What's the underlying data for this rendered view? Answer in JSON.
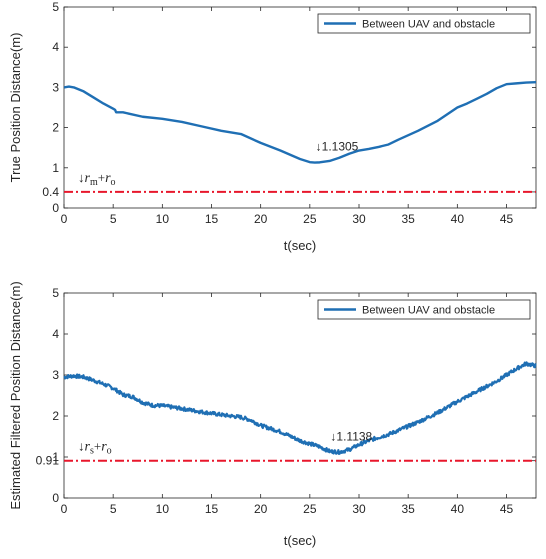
{
  "chart_data": [
    {
      "type": "line",
      "ylabel": "True Position Distance(m)",
      "xlabel": "t(sec)",
      "xlim": [
        0,
        48
      ],
      "ylim": [
        0,
        5
      ],
      "xticks": [
        0,
        5,
        10,
        15,
        20,
        25,
        30,
        35,
        40,
        45
      ],
      "yticks": [
        0,
        0.4,
        1,
        2,
        3,
        4,
        5
      ],
      "grid": false,
      "legend_position": "top-right",
      "series": [
        {
          "name": "Between UAV and obstacle",
          "color": "#1f6fb4",
          "x": [
            0,
            0.5,
            1,
            2,
            3,
            4,
            5,
            5.2,
            5.3,
            6,
            8,
            10,
            12,
            14,
            16,
            18,
            20,
            22,
            24,
            25,
            25.5,
            26,
            27,
            28,
            29,
            30,
            31,
            32,
            33,
            34,
            36,
            38,
            40,
            41,
            42,
            43,
            44,
            45,
            46,
            47,
            48
          ],
          "y": [
            3.0,
            3.02,
            3.0,
            2.9,
            2.75,
            2.6,
            2.47,
            2.44,
            2.38,
            2.38,
            2.27,
            2.22,
            2.14,
            2.03,
            1.92,
            1.84,
            1.62,
            1.43,
            1.22,
            1.14,
            1.131,
            1.135,
            1.17,
            1.25,
            1.35,
            1.43,
            1.47,
            1.52,
            1.58,
            1.7,
            1.92,
            2.17,
            2.5,
            2.6,
            2.72,
            2.84,
            2.98,
            3.08,
            3.1,
            3.12,
            3.13
          ]
        },
        {
          "name": "",
          "color": "#e8172c",
          "style": "dash-dot",
          "x": [
            0,
            48
          ],
          "y": [
            0.4,
            0.4
          ]
        }
      ],
      "annotations": [
        {
          "text": "↓1.1305",
          "x": 26.0,
          "y": 1.1305
        }
      ],
      "threshold_label": {
        "arrow": "↓",
        "a": "r",
        "a_sub": "m",
        "plus": "+",
        "b": "r",
        "b_sub": "o"
      }
    },
    {
      "type": "line",
      "ylabel": "Estimated Filtered Position Distance(m)",
      "xlabel": "t(sec)",
      "xlim": [
        0,
        48
      ],
      "ylim": [
        0,
        5
      ],
      "xticks": [
        0,
        5,
        10,
        15,
        20,
        25,
        30,
        35,
        40,
        45
      ],
      "yticks": [
        0,
        0.91,
        1,
        2,
        3,
        4,
        5
      ],
      "grid": false,
      "legend_position": "top-right",
      "series": [
        {
          "name": "Between UAV and obstacle",
          "color": "#1f6fb4",
          "noisy": true,
          "x": [
            0,
            1,
            2,
            3,
            4,
            5,
            6,
            7,
            8,
            9,
            10,
            12,
            14,
            16,
            18,
            19,
            20,
            22,
            24,
            26,
            27,
            28,
            29,
            30,
            31,
            32,
            33,
            34,
            35,
            36,
            38,
            40,
            42,
            44,
            45,
            46,
            47,
            48
          ],
          "y": [
            2.95,
            2.98,
            2.95,
            2.87,
            2.78,
            2.68,
            2.52,
            2.47,
            2.33,
            2.26,
            2.25,
            2.18,
            2.1,
            2.03,
            1.97,
            1.9,
            1.77,
            1.62,
            1.4,
            1.25,
            1.14,
            1.12,
            1.18,
            1.3,
            1.4,
            1.48,
            1.55,
            1.65,
            1.75,
            1.85,
            2.08,
            2.35,
            2.6,
            2.85,
            3.0,
            3.15,
            3.28,
            3.22
          ]
        },
        {
          "name": "",
          "color": "#e8172c",
          "style": "dash-dot",
          "x": [
            0,
            48
          ],
          "y": [
            0.91,
            0.91
          ]
        }
      ],
      "annotations": [
        {
          "text": "↓1.1138",
          "x": 27.5,
          "y": 1.1138
        }
      ],
      "threshold_label": {
        "arrow": "↓",
        "a": "r",
        "a_sub": "s",
        "plus": "+",
        "b": "r",
        "b_sub": "o"
      }
    }
  ]
}
